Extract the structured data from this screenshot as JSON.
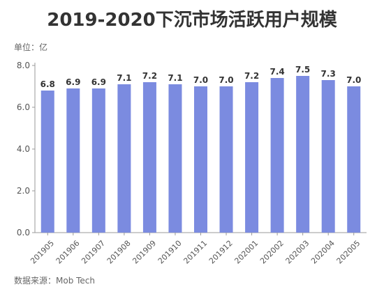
{
  "title": "2019-2020下沉市场活跃用户规模",
  "unit_label": "单位：亿",
  "source_label": "数据来源：Mob Tech",
  "colors": {
    "bar": "#7B8BE0",
    "axis": "#999999",
    "grid": "#e6e6e6",
    "text": "#333333"
  },
  "chart_data": {
    "type": "bar",
    "title": "2019-2020下沉市场活跃用户规模",
    "xlabel": "",
    "ylabel": "",
    "categories": [
      "201905",
      "201906",
      "201907",
      "201908",
      "201909",
      "201910",
      "201911",
      "201912",
      "202001",
      "202002",
      "202003",
      "202004",
      "202005"
    ],
    "values": [
      6.8,
      6.9,
      6.9,
      7.1,
      7.2,
      7.1,
      7.0,
      7.0,
      7.2,
      7.4,
      7.5,
      7.3,
      7.0
    ],
    "value_labels": [
      "6.8",
      "6.9",
      "6.9",
      "7.1",
      "7.2",
      "7.1",
      "7.0",
      "7.0",
      "7.2",
      "7.4",
      "7.5",
      "7.3",
      "7.0"
    ],
    "ylim": [
      0,
      8
    ],
    "yticks": [
      "0.0",
      "2.0",
      "4.0",
      "6.0",
      "8.0"
    ],
    "grid": false,
    "legend": "none"
  }
}
